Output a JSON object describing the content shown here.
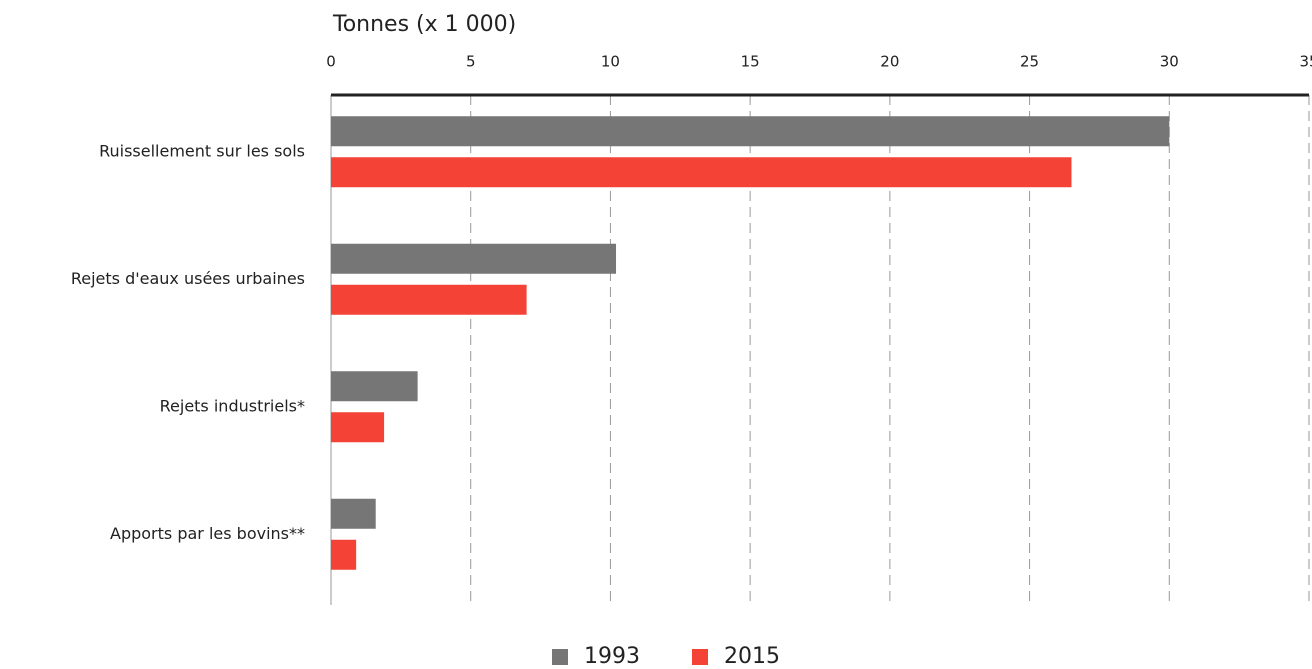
{
  "chart_data": {
    "type": "bar",
    "orientation": "horizontal",
    "x_label": "Tonnes (x 1 000)",
    "categories": [
      "Ruissellement sur les sols",
      "Rejets d'eaux usées urbaines",
      "Rejets industriels*",
      "Apports par les bovins**"
    ],
    "series": [
      {
        "name": "1993",
        "color": "#767676",
        "values": [
          30.0,
          10.2,
          3.1,
          1.6
        ]
      },
      {
        "name": "2015",
        "color": "#f44336",
        "values": [
          26.5,
          7.0,
          1.9,
          0.9
        ]
      }
    ],
    "xlim": [
      0,
      35
    ],
    "xticks": [
      0,
      5,
      10,
      15,
      20,
      25,
      30,
      35
    ],
    "grid": true,
    "legend": "bottom"
  }
}
